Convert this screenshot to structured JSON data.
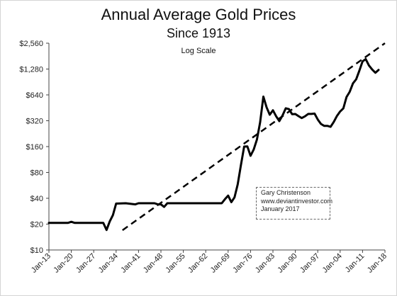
{
  "chart_data": {
    "type": "line",
    "title": "Annual Average Gold Prices",
    "subtitle": "Since 1913",
    "scale_note": "Log Scale",
    "xlabel": "",
    "ylabel": "",
    "y_scale": "log2",
    "ylim": [
      10,
      2560
    ],
    "y_ticks": [
      10,
      20,
      40,
      80,
      160,
      320,
      640,
      1280,
      2560
    ],
    "y_tick_labels": [
      "$10",
      "$20",
      "$40",
      "$80",
      "$160",
      "$320",
      "$640",
      "$1,280",
      "$2,560"
    ],
    "xlim": [
      1913,
      2018
    ],
    "x_ticks": [
      1913,
      1920,
      1927,
      1934,
      1941,
      1948,
      1955,
      1962,
      1969,
      1976,
      1983,
      1990,
      1997,
      2004,
      2011,
      2018
    ],
    "x_tick_labels": [
      "Jan-13",
      "Jan-20",
      "Jan-27",
      "Jan-34",
      "Jan-41",
      "Jan-48",
      "Jan-55",
      "Jan-62",
      "Jan-69",
      "Jan-76",
      "Jan-83",
      "Jan-90",
      "Jan-97",
      "Jan-04",
      "Jan-11",
      "Jan-18"
    ],
    "grid": false,
    "legend": "none",
    "annotation": [
      "Gary Christenson",
      "www.deviantinvestor.com",
      "January 2017"
    ],
    "series": [
      {
        "style": "solid",
        "color": "#000000",
        "x": [
          1913,
          1916,
          1919,
          1920,
          1921,
          1925,
          1928,
          1930,
          1931,
          1932,
          1933,
          1934,
          1937,
          1940,
          1941,
          1944,
          1946,
          1947,
          1948,
          1949,
          1950,
          1955,
          1960,
          1965,
          1967,
          1968,
          1969,
          1970,
          1971,
          1972,
          1973,
          1974,
          1975,
          1976,
          1977,
          1978,
          1979,
          1980,
          1981,
          1982,
          1983,
          1984,
          1985,
          1986,
          1987,
          1988,
          1989,
          1990,
          1991,
          1992,
          1993,
          1994,
          1995,
          1996,
          1997,
          1998,
          1999,
          2000,
          2001,
          2002,
          2003,
          2004,
          2005,
          2006,
          2007,
          2008,
          2009,
          2010,
          2011,
          2012,
          2013,
          2014,
          2015,
          2016
        ],
        "values": [
          20.7,
          20.7,
          20.7,
          21.3,
          20.7,
          20.7,
          20.7,
          20.7,
          17.1,
          21.5,
          25.5,
          34.7,
          35,
          34,
          35,
          35,
          35,
          34,
          34,
          31.7,
          35,
          35,
          35,
          35,
          35,
          39,
          43,
          36,
          41,
          58,
          98,
          160,
          161,
          125,
          148,
          193,
          306,
          612,
          460,
          376,
          424,
          361,
          317,
          368,
          447,
          437,
          381,
          383,
          362,
          344,
          360,
          384,
          384,
          388,
          331,
          294,
          279,
          279,
          272,
          310,
          364,
          410,
          445,
          604,
          696,
          872,
          972,
          1225,
          1572,
          1669,
          1411,
          1266,
          1160,
          1250
        ]
      },
      {
        "style": "dashed",
        "color": "#000000",
        "x": [
          1936,
          2018
        ],
        "values": [
          17,
          2560
        ]
      }
    ]
  }
}
